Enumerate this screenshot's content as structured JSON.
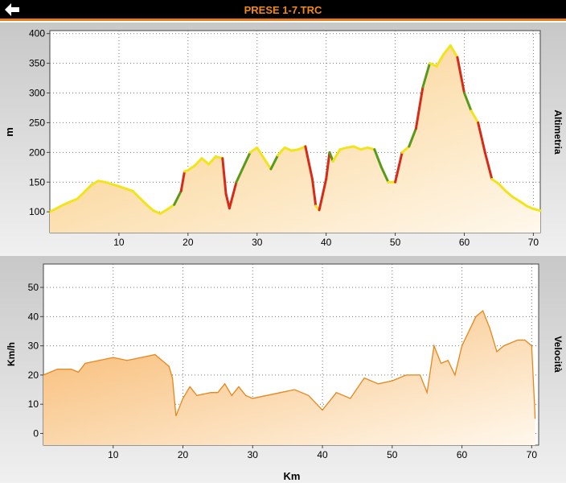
{
  "header": {
    "title": "PRESE 1-7.TRC",
    "back_icon": "arrow-left-icon"
  },
  "charts": {
    "altitude": {
      "side_label": "Altimetria",
      "ylabel": "m",
      "yticks": [
        "100",
        "150",
        "200",
        "250",
        "300",
        "350",
        "400"
      ],
      "xticks": [
        "10",
        "20",
        "30",
        "40",
        "50",
        "60",
        "70"
      ]
    },
    "speed": {
      "side_label": "Velocità",
      "ylabel": "Km/h",
      "xlabel": "Km",
      "yticks": [
        "0",
        "10",
        "20",
        "30",
        "40",
        "50"
      ],
      "xticks": [
        "10",
        "20",
        "30",
        "40",
        "50",
        "60",
        "70"
      ]
    }
  },
  "colors": {
    "accent": "#e87a14",
    "fill_top": "#f9c97a",
    "fill_bottom": "#fff8ec",
    "steep_up": "#d62b18",
    "moderate": "#5a9a18",
    "flat": "#f2e41a"
  },
  "chart_data": [
    {
      "type": "area",
      "title": "Altimetria",
      "xlabel": "",
      "ylabel": "m",
      "xlim": [
        0,
        71
      ],
      "ylim": [
        65,
        405
      ],
      "x": [
        0,
        2,
        4,
        6,
        7,
        8,
        10,
        12,
        14,
        15,
        16,
        17,
        18,
        19,
        19.5,
        20,
        21,
        22,
        23,
        24,
        25,
        25.5,
        26,
        27,
        28,
        29,
        30,
        31,
        32,
        33,
        34,
        35,
        36,
        37,
        38,
        38.5,
        39,
        40,
        40.5,
        41,
        41.5,
        42,
        43,
        44,
        45,
        46,
        47,
        48,
        49,
        50,
        51,
        52,
        53,
        54,
        55,
        56,
        57,
        58,
        59,
        60,
        61,
        62,
        63,
        64,
        65,
        66,
        67,
        68,
        69,
        70,
        71
      ],
      "y": [
        100,
        112,
        122,
        145,
        152,
        150,
        143,
        135,
        112,
        102,
        97,
        104,
        112,
        135,
        168,
        170,
        178,
        190,
        180,
        193,
        190,
        130,
        106,
        150,
        175,
        200,
        208,
        190,
        172,
        195,
        208,
        203,
        205,
        210,
        155,
        110,
        103,
        155,
        200,
        185,
        195,
        205,
        208,
        210,
        205,
        208,
        205,
        175,
        150,
        150,
        200,
        210,
        240,
        310,
        350,
        345,
        365,
        380,
        360,
        300,
        270,
        250,
        200,
        155,
        147,
        135,
        125,
        118,
        110,
        105,
        102
      ]
    },
    {
      "type": "line",
      "title": "Velocità",
      "xlabel": "Km",
      "ylabel": "Km/h",
      "xlim": [
        0,
        71
      ],
      "ylim": [
        -4,
        58
      ],
      "x": [
        0,
        2,
        4,
        5,
        6,
        8,
        10,
        12,
        14,
        16,
        17,
        18,
        18.5,
        19,
        20,
        21,
        22,
        24,
        25,
        26,
        27,
        28,
        29,
        30,
        32,
        34,
        36,
        38,
        40,
        42,
        44,
        46,
        48,
        50,
        52,
        54,
        55,
        56,
        57,
        58,
        59,
        60,
        61,
        62,
        63,
        64,
        65,
        66,
        67,
        68,
        69,
        70,
        70.5
      ],
      "y": [
        20,
        22,
        22,
        21,
        24,
        25,
        26,
        25,
        26,
        27,
        25,
        23,
        19,
        6,
        12,
        16,
        13,
        14,
        14,
        17,
        13,
        16,
        13,
        12,
        13,
        14,
        15,
        13,
        8,
        14,
        12,
        19,
        17,
        18,
        20,
        20,
        14,
        30,
        24,
        25,
        20,
        30,
        35,
        40,
        42,
        36,
        28,
        30,
        31,
        32,
        32,
        30,
        5
      ]
    }
  ]
}
